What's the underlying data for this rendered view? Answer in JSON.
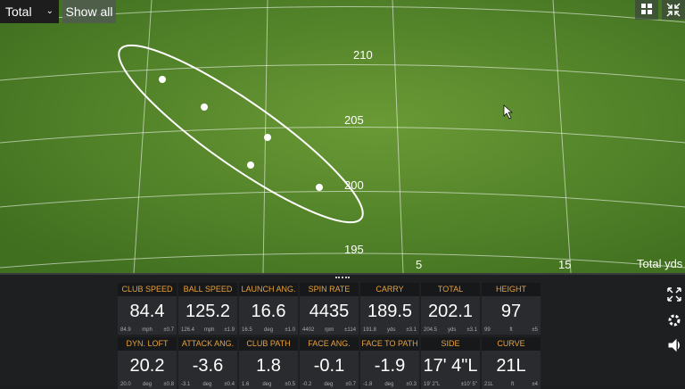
{
  "toolbar": {
    "view_select": "Total",
    "show_all": "Show all"
  },
  "field": {
    "grid_labels": [
      "210",
      "205",
      "200",
      "195",
      "5",
      "15"
    ],
    "axis_label": "Total yds"
  },
  "tiles": [
    {
      "label": "CLUB SPEED",
      "value": "84.4",
      "avg": "84.9",
      "unit": "mph",
      "dev": "±0.7"
    },
    {
      "label": "BALL SPEED",
      "value": "125.2",
      "avg": "126.4",
      "unit": "mph",
      "dev": "±1.9"
    },
    {
      "label": "LAUNCH ANG.",
      "value": "16.6",
      "avg": "16.5",
      "unit": "deg",
      "dev": "±1.0"
    },
    {
      "label": "SPIN RATE",
      "value": "4435",
      "avg": "4402",
      "unit": "rpm",
      "dev": "±114"
    },
    {
      "label": "CARRY",
      "value": "189.5",
      "avg": "191.8",
      "unit": "yds",
      "dev": "±3.1"
    },
    {
      "label": "TOTAL",
      "value": "202.1",
      "avg": "204.5",
      "unit": "yds",
      "dev": "±3.1"
    },
    {
      "label": "HEIGHT",
      "value": "97",
      "avg": "99",
      "unit": "ft",
      "dev": "±5"
    },
    {
      "label": "DYN. LOFT",
      "value": "20.2",
      "avg": "20.0",
      "unit": "deg",
      "dev": "±0.8"
    },
    {
      "label": "ATTACK ANG.",
      "value": "-3.6",
      "avg": "-3.1",
      "unit": "deg",
      "dev": "±0.4"
    },
    {
      "label": "CLUB PATH",
      "value": "1.8",
      "avg": "1.6",
      "unit": "deg",
      "dev": "±0.5"
    },
    {
      "label": "FACE ANG.",
      "value": "-0.1",
      "avg": "-0.2",
      "unit": "deg",
      "dev": "±0.7"
    },
    {
      "label": "FACE TO PATH",
      "value": "-1.9",
      "avg": "-1.8",
      "unit": "deg",
      "dev": "±0.3"
    },
    {
      "label": "SIDE",
      "value": "17' 4\"L",
      "avg": "19' 2\"L",
      "unit": "",
      "dev": "±10' 5\""
    },
    {
      "label": "CURVE",
      "value": "21L",
      "avg": "21L",
      "unit": "ft",
      "dev": "±4"
    }
  ]
}
